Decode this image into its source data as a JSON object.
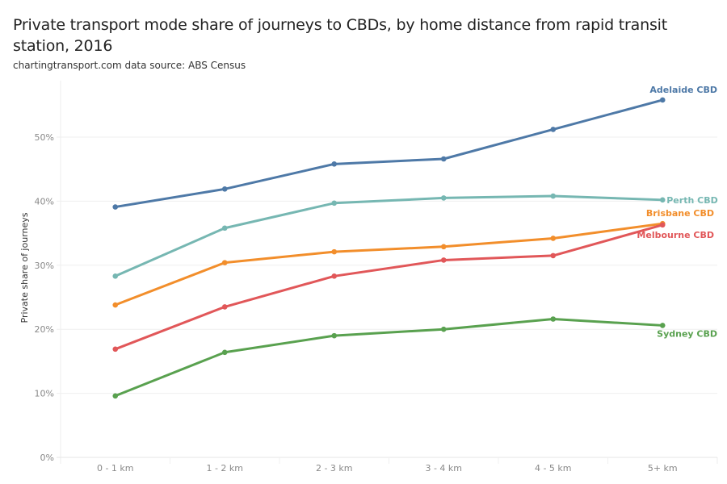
{
  "header": {
    "title": "Private transport mode share of journeys to CBDs, by home distance from rapid transit station, 2016",
    "subtitle": "chartingtransport.com  data source: ABS Census"
  },
  "chart_data": {
    "type": "line",
    "title": "Private transport mode share of journeys to CBDs, by home distance from rapid transit station, 2016",
    "subtitle": "chartingtransport.com  data source: ABS Census",
    "xlabel": "",
    "ylabel": "Private share of journeys",
    "categories": [
      "0 - 1 km",
      "1 - 2 km",
      "2 - 3 km",
      "3 - 4 km",
      "4 - 5 km",
      "5+ km"
    ],
    "ylim": [
      0,
      50
    ],
    "yticks": [
      0,
      10,
      20,
      30,
      40,
      50
    ],
    "ytick_labels": [
      "0%",
      "10%",
      "20%",
      "30%",
      "40%",
      "50%"
    ],
    "y_unit": "%",
    "grid": true,
    "legend": "direct labels at line ends (right)",
    "series": [
      {
        "name": "Adelaide CBD",
        "color": "#4e79a7",
        "values": [
          39.1,
          41.9,
          45.8,
          46.6,
          51.2,
          55.8
        ]
      },
      {
        "name": "Perth CBD",
        "color": "#76b7b2",
        "values": [
          28.3,
          35.8,
          39.7,
          40.5,
          40.8,
          40.2
        ]
      },
      {
        "name": "Brisbane CBD",
        "color": "#f28e2b",
        "values": [
          23.8,
          30.4,
          32.1,
          32.9,
          34.2,
          36.5
        ]
      },
      {
        "name": "Melbourne CBD",
        "color": "#e15759",
        "values": [
          16.9,
          23.5,
          28.3,
          30.8,
          31.5,
          36.3
        ]
      },
      {
        "name": "Sydney CBD",
        "color": "#59a14f",
        "values": [
          9.6,
          16.4,
          19.0,
          20.0,
          21.6,
          20.6
        ]
      }
    ]
  }
}
